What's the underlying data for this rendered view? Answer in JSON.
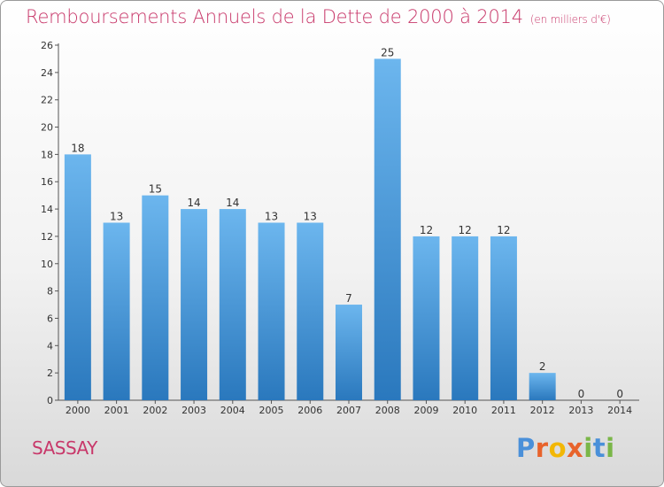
{
  "title": "Remboursements Annuels de la Dette de 2000 à 2014",
  "subtitle": "(en milliers d'€)",
  "commune": "SASSAY",
  "logo": {
    "letters": [
      "P",
      "r",
      "o",
      "x",
      "i",
      "t",
      "i"
    ],
    "colors": [
      "#4a90d9",
      "#e8632b",
      "#f2b705",
      "#e8632b",
      "#7ab648",
      "#4a90d9",
      "#7ab648"
    ]
  },
  "colors": {
    "bar_light": "#6cb6ee",
    "bar_dark": "#2a78bd",
    "title": "#c8386a"
  },
  "chart_data": {
    "type": "bar",
    "title": "Remboursements Annuels de la Dette de 2000 à 2014",
    "subtitle": "(en milliers d'€)",
    "categories": [
      "2000",
      "2001",
      "2002",
      "2003",
      "2004",
      "2005",
      "2006",
      "2007",
      "2008",
      "2009",
      "2010",
      "2011",
      "2012",
      "2013",
      "2014"
    ],
    "values": [
      18,
      13,
      15,
      14,
      14,
      13,
      13,
      7,
      25,
      12,
      12,
      12,
      2,
      0,
      0
    ],
    "data_labels": [
      "18",
      "13",
      "15",
      "14",
      "14",
      "13",
      "13",
      "7",
      "25",
      "12",
      "12",
      "12",
      "2",
      "0",
      "0"
    ],
    "ylim": [
      0,
      26
    ],
    "yticks": [
      0,
      2,
      4,
      6,
      8,
      10,
      12,
      14,
      16,
      18,
      20,
      22,
      24,
      26
    ],
    "grid": false,
    "xlabel": "",
    "ylabel": ""
  }
}
